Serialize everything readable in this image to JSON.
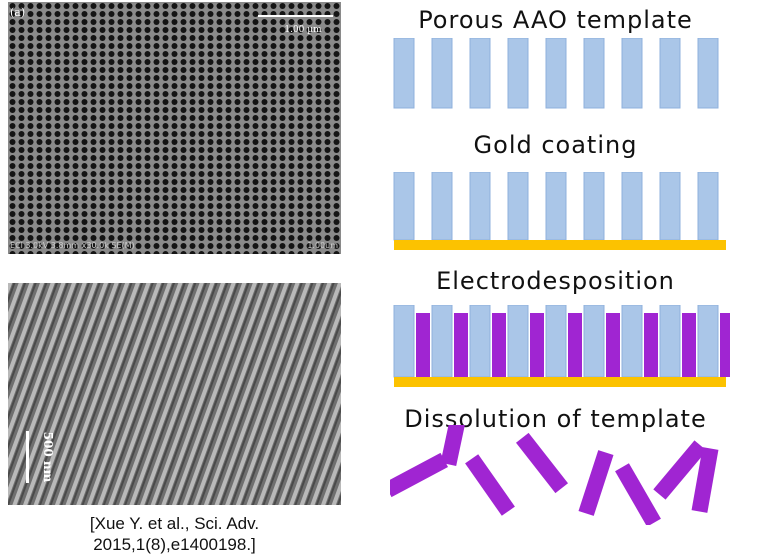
{
  "images": {
    "top": {
      "panel_label": "(a)",
      "scale_label": "1.00 µm",
      "footer_left": "ECl 3.0kV 3.8mm x30.0k SE(M)",
      "footer_right": "1.00um"
    },
    "bottom": {
      "scale_label": "500 nm"
    }
  },
  "steps": [
    {
      "title": "Porous AAO template"
    },
    {
      "title": "Gold coating"
    },
    {
      "title": "Electrodesposition"
    },
    {
      "title": "Dissolution of template"
    }
  ],
  "citation": {
    "line1": "[Xue Y. et al., Sci. Adv.",
    "line2": "2015,1(8),e1400198.]"
  },
  "colors": {
    "template": "#aac6e8",
    "template_border": "#8fb0dc",
    "gold": "#fcc200",
    "nanowire": "#a025d2",
    "sem_bg": "#3a3a3a"
  }
}
